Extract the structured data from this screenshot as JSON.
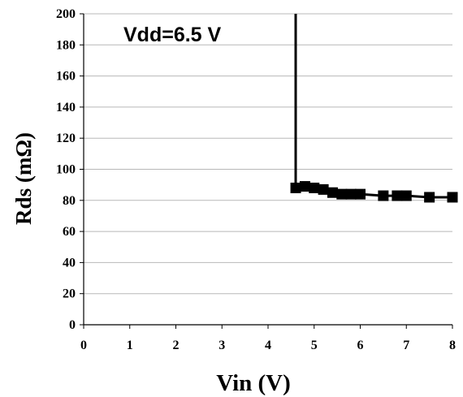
{
  "chart_data": {
    "type": "scatter",
    "title": "",
    "xlabel": "Vin (V)",
    "ylabel": "Rds (mΩ)",
    "xlim": [
      0,
      8
    ],
    "ylim": [
      0,
      200
    ],
    "xticks": [
      "0",
      "1",
      "2",
      "3",
      "4",
      "5",
      "6",
      "7",
      "8"
    ],
    "yticks": [
      "0",
      "20",
      "40",
      "60",
      "80",
      "100",
      "120",
      "140",
      "160",
      "180",
      "200"
    ],
    "grid": "horizontal",
    "legend": "none",
    "annotations": [
      {
        "text": "Vdd=6.5 V"
      }
    ],
    "series": [
      {
        "marker": "square",
        "line": true,
        "color": "#000000",
        "x": [
          4.6,
          4.6,
          4.8,
          5.0,
          5.2,
          5.4,
          5.6,
          5.8,
          6.0,
          6.5,
          6.8,
          7.0,
          7.5,
          8.0
        ],
        "y": [
          200,
          88,
          89,
          88,
          87,
          85,
          84,
          84,
          84,
          83,
          83,
          83,
          82,
          82
        ],
        "marker_x": [
          4.6,
          4.8,
          5.0,
          5.2,
          5.4,
          5.6,
          5.8,
          6.0,
          6.5,
          6.8,
          7.0,
          7.5,
          8.0
        ],
        "marker_y": [
          88,
          89,
          88,
          87,
          85,
          84,
          84,
          84,
          83,
          83,
          83,
          82,
          82
        ]
      }
    ]
  }
}
